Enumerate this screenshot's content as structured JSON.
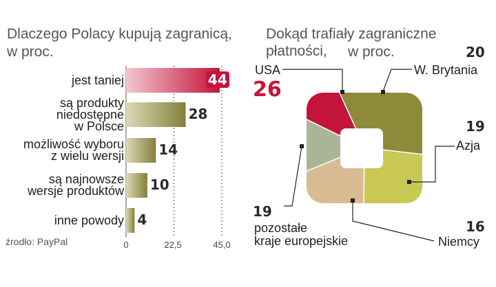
{
  "left_title": "Dlaczego Polacy kupują zagranicą,",
  "left_title_2": "w proc.",
  "right_title": "Dokąd trafiały zagraniczne płatności,",
  "right_title_2": "w proc.",
  "source": "źrodło: PayPal",
  "colors": {
    "highlight": "#c4143a",
    "olive": "#8f8a3a"
  },
  "chart_data": [
    {
      "type": "bar",
      "orientation": "horizontal",
      "categories": [
        "jest taniej",
        "są produkty niedostępne w Polsce",
        "możliwość wyboru z wielu wersji",
        "są najnowsze wersje produktów",
        "inne powody"
      ],
      "category_lines": [
        [
          "jest taniej"
        ],
        [
          "są produkty",
          "niedostępne",
          "w Polsce"
        ],
        [
          "możliwość wyboru",
          "z wielu wersji"
        ],
        [
          "są najnowsze",
          "wersje produktów"
        ],
        [
          "inne powody"
        ]
      ],
      "values": [
        44,
        28,
        14,
        10,
        4
      ],
      "value_labels": [
        "44",
        "28",
        "14",
        "10",
        "4"
      ],
      "ticks": [
        "0",
        "22,5",
        "45,0"
      ],
      "xlim": [
        0,
        45
      ],
      "highlight_index": 0
    },
    {
      "type": "pie",
      "labels": [
        "USA",
        "W. Brytania",
        "Azja",
        "Niemcy",
        "pozostałe kraje europejskie"
      ],
      "label_lines": [
        [
          "USA"
        ],
        [
          "W. Brytania"
        ],
        [
          "Azja"
        ],
        [
          "Niemcy"
        ],
        [
          "pozostałe",
          "kraje europejskie"
        ]
      ],
      "values": [
        26,
        20,
        19,
        16,
        19
      ],
      "value_labels": [
        "26",
        "20",
        "19",
        "16",
        "19"
      ],
      "colors": [
        "#c4143a",
        "#8f8a3a",
        "#c9c855",
        "#d8bb92",
        "#a9b596"
      ]
    }
  ]
}
